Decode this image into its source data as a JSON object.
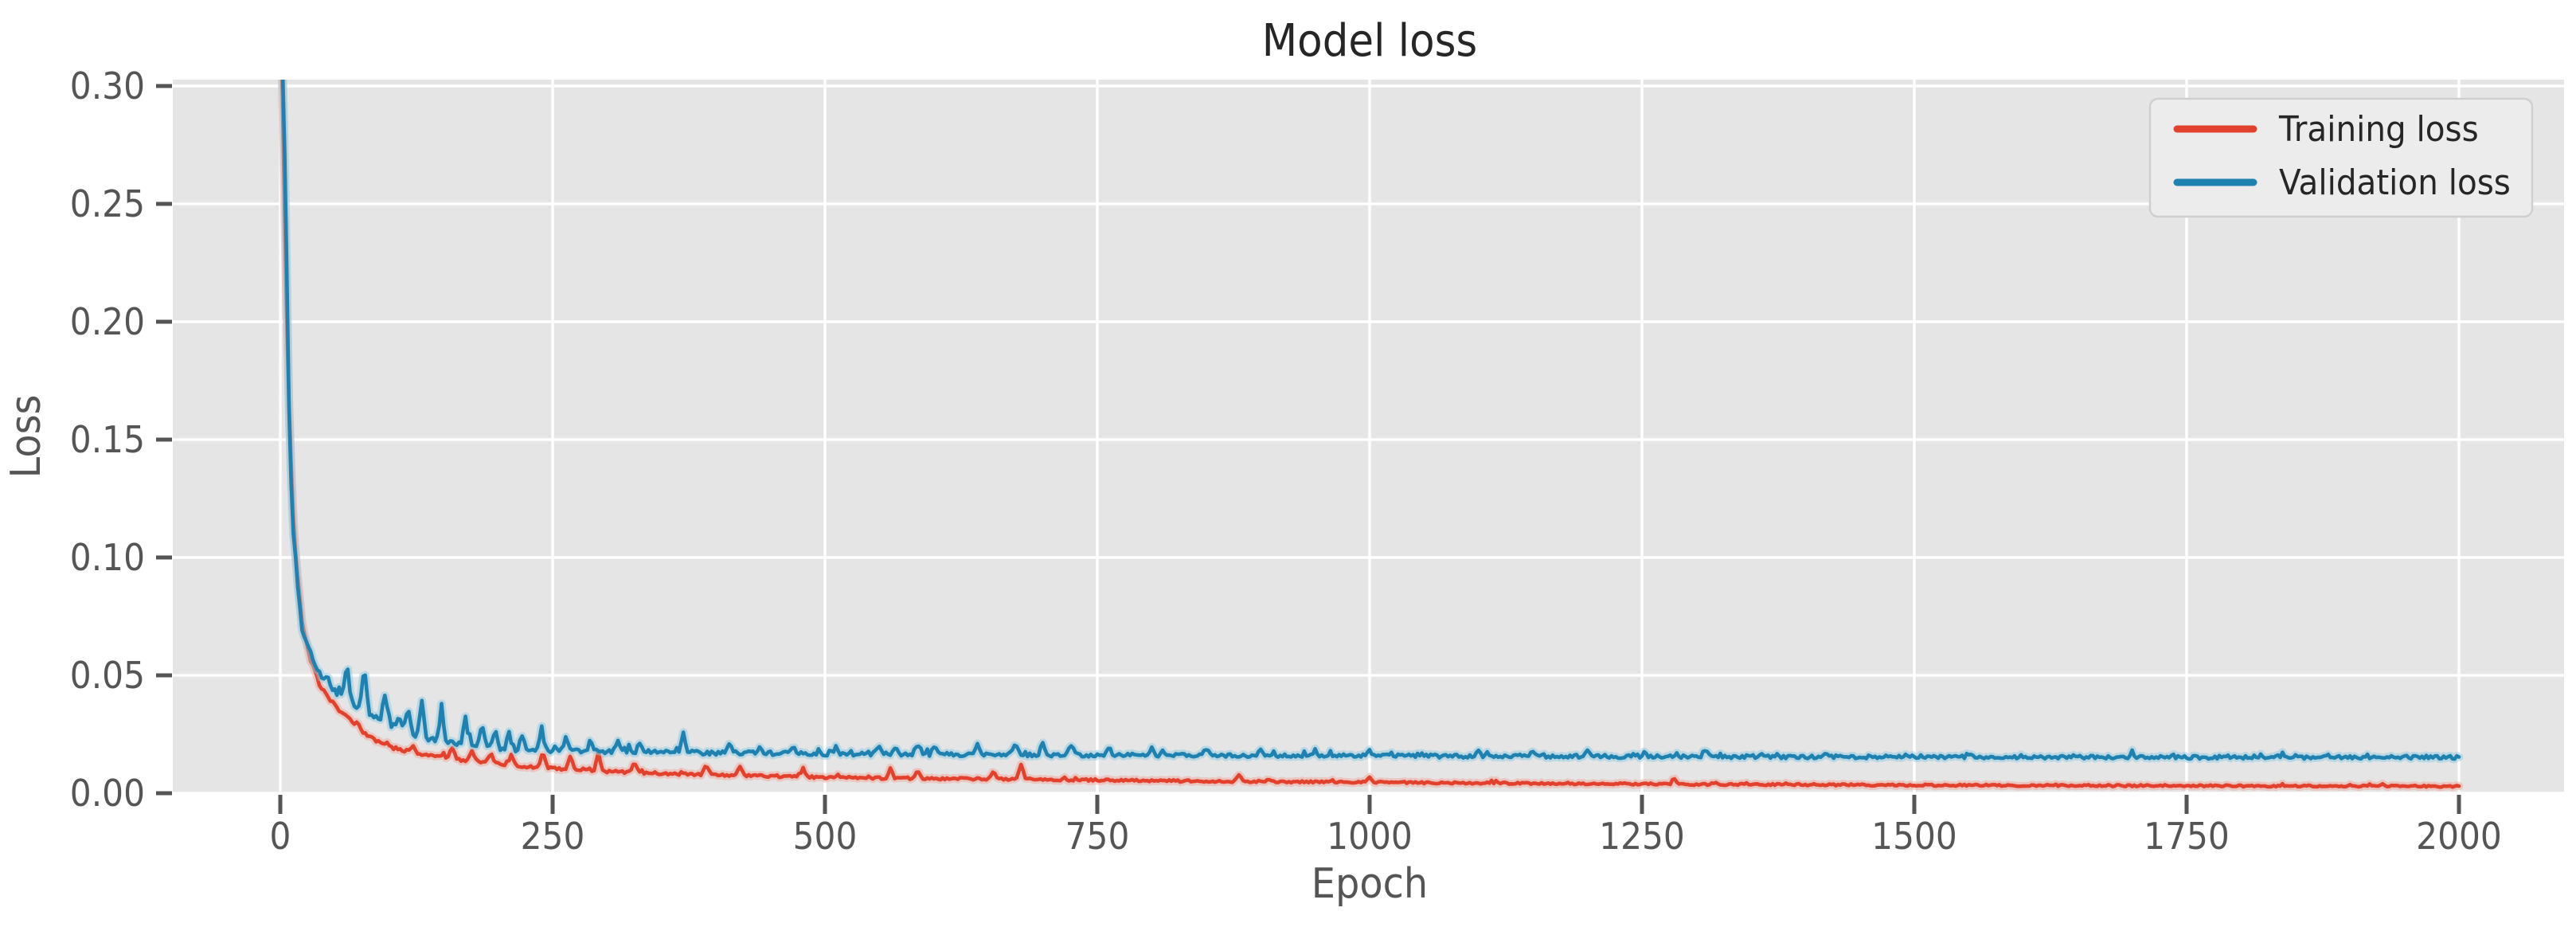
{
  "figure": {
    "background": "#ffffff"
  },
  "chart_data": {
    "type": "line",
    "title": "Model loss",
    "xlabel": "Epoch",
    "ylabel": "Loss",
    "xlim": [
      -100,
      2096
    ],
    "ylim": [
      0,
      0.3027
    ],
    "grid": true,
    "legend_position": "upper right",
    "plot_bg": "#e5e5e5",
    "grid_color": "#ffffff",
    "tick_color": "#555555",
    "label_color": "#555555",
    "title_color": "#262626",
    "legend_bg": "#ececec",
    "legend_border": "#cfcfcf",
    "x_ticks": [
      0,
      250,
      500,
      750,
      1000,
      1250,
      1500,
      1750,
      2000
    ],
    "x_tick_labels": [
      "0",
      "250",
      "500",
      "750",
      "1000",
      "1250",
      "1500",
      "1750",
      "2000"
    ],
    "y_ticks": [
      0.0,
      0.05,
      0.1,
      0.15,
      0.2,
      0.25,
      0.3
    ],
    "y_tick_labels": [
      "0.00",
      "0.05",
      "0.10",
      "0.15",
      "0.20",
      "0.25",
      "0.30"
    ],
    "series": [
      {
        "name": "Training loss",
        "color": "#e2422d",
        "halo": "#f2a79b",
        "seed": 7,
        "micro_spike_prob": 0.05,
        "noise_profile": [
          [
            0,
            0.0012
          ],
          [
            30,
            0.0009
          ],
          [
            120,
            0.0007
          ],
          [
            400,
            0.0005
          ],
          [
            2000,
            0.00035
          ]
        ],
        "keypoints": [
          [
            0,
            0.33
          ],
          [
            2,
            0.295
          ],
          [
            4,
            0.245
          ],
          [
            6,
            0.2
          ],
          [
            8,
            0.165
          ],
          [
            10,
            0.14
          ],
          [
            12,
            0.117
          ],
          [
            15,
            0.096
          ],
          [
            18,
            0.082
          ],
          [
            20,
            0.0725
          ],
          [
            23,
            0.065
          ],
          [
            26,
            0.0595
          ],
          [
            30,
            0.054
          ],
          [
            35,
            0.047
          ],
          [
            40,
            0.0435
          ],
          [
            45,
            0.0402
          ],
          [
            50,
            0.0372
          ],
          [
            55,
            0.0348
          ],
          [
            60,
            0.0327
          ],
          [
            65,
            0.0305
          ],
          [
            70,
            0.0285
          ],
          [
            75,
            0.0266
          ],
          [
            80,
            0.0249
          ],
          [
            85,
            0.0233
          ],
          [
            90,
            0.0218
          ],
          [
            95,
            0.0202
          ],
          [
            100,
            0.0195
          ],
          [
            110,
            0.0185
          ],
          [
            120,
            0.0175
          ],
          [
            140,
            0.016
          ],
          [
            150,
            0.0152
          ],
          [
            160,
            0.0146
          ],
          [
            170,
            0.014
          ],
          [
            180,
            0.0135
          ],
          [
            190,
            0.013
          ],
          [
            200,
            0.0125
          ],
          [
            215,
            0.0117
          ],
          [
            230,
            0.0111
          ],
          [
            250,
            0.0105
          ],
          [
            275,
            0.0098
          ],
          [
            300,
            0.0092
          ],
          [
            325,
            0.0088
          ],
          [
            350,
            0.0084
          ],
          [
            400,
            0.0078
          ],
          [
            450,
            0.0072
          ],
          [
            500,
            0.0067
          ],
          [
            550,
            0.0064
          ],
          [
            600,
            0.0062
          ],
          [
            650,
            0.006
          ],
          [
            700,
            0.0058
          ],
          [
            750,
            0.0056
          ],
          [
            800,
            0.0053
          ],
          [
            900,
            0.0049
          ],
          [
            1000,
            0.0046
          ],
          [
            1100,
            0.0043
          ],
          [
            1200,
            0.004
          ],
          [
            1300,
            0.0038
          ],
          [
            1400,
            0.0036
          ],
          [
            1500,
            0.0034
          ],
          [
            1600,
            0.0033
          ],
          [
            1700,
            0.0032
          ],
          [
            1800,
            0.0031
          ],
          [
            1900,
            0.003
          ],
          [
            2000,
            0.0029
          ]
        ],
        "spikes": [
          [
            122,
            0.0198
          ],
          [
            158,
            0.019
          ],
          [
            176,
            0.018
          ],
          [
            193,
            0.017
          ],
          [
            212,
            0.016
          ],
          [
            241,
            0.0182
          ],
          [
            266,
            0.0162
          ],
          [
            292,
            0.0168
          ],
          [
            325,
            0.013
          ],
          [
            391,
            0.012
          ],
          [
            422,
            0.0115
          ],
          [
            480,
            0.0105
          ],
          [
            560,
            0.0105
          ],
          [
            585,
            0.0098
          ],
          [
            655,
            0.0098
          ],
          [
            680,
            0.012
          ],
          [
            880,
            0.0078
          ],
          [
            1000,
            0.0072
          ],
          [
            1280,
            0.0062
          ]
        ]
      },
      {
        "name": "Validation loss",
        "color": "#1f81b0",
        "halo": "#8ecbe4",
        "seed": 13,
        "micro_spike_prob": 0.1,
        "noise_profile": [
          [
            0,
            0.0022
          ],
          [
            20,
            0.002
          ],
          [
            120,
            0.0012
          ],
          [
            400,
            0.001
          ],
          [
            700,
            0.0008
          ],
          [
            2000,
            0.0007
          ]
        ],
        "keypoints": [
          [
            0,
            0.34
          ],
          [
            2,
            0.31
          ],
          [
            4,
            0.27
          ],
          [
            6,
            0.215
          ],
          [
            8,
            0.162
          ],
          [
            10,
            0.133
          ],
          [
            12,
            0.111
          ],
          [
            15,
            0.0925
          ],
          [
            18,
            0.0795
          ],
          [
            20,
            0.071
          ],
          [
            23,
            0.0655
          ],
          [
            26,
            0.0615
          ],
          [
            30,
            0.0565
          ],
          [
            35,
            0.051
          ],
          [
            40,
            0.0475
          ],
          [
            45,
            0.0448
          ],
          [
            50,
            0.0432
          ],
          [
            55,
            0.0415
          ],
          [
            60,
            0.0398
          ],
          [
            65,
            0.0385
          ],
          [
            70,
            0.0373
          ],
          [
            75,
            0.0362
          ],
          [
            80,
            0.0348
          ],
          [
            85,
            0.0335
          ],
          [
            90,
            0.0318
          ],
          [
            95,
            0.0305
          ],
          [
            100,
            0.029
          ],
          [
            110,
            0.0268
          ],
          [
            120,
            0.0251
          ],
          [
            130,
            0.0238
          ],
          [
            140,
            0.0228
          ],
          [
            150,
            0.022
          ],
          [
            160,
            0.0212
          ],
          [
            170,
            0.0206
          ],
          [
            180,
            0.02
          ],
          [
            190,
            0.0196
          ],
          [
            200,
            0.0192
          ],
          [
            215,
            0.0188
          ],
          [
            230,
            0.0185
          ],
          [
            250,
            0.0182
          ],
          [
            275,
            0.0179
          ],
          [
            300,
            0.0177
          ],
          [
            350,
            0.0174
          ],
          [
            400,
            0.0171
          ],
          [
            450,
            0.0169
          ],
          [
            500,
            0.0168
          ],
          [
            600,
            0.0165
          ],
          [
            700,
            0.0163
          ],
          [
            800,
            0.0161
          ],
          [
            900,
            0.0159
          ],
          [
            1000,
            0.0158
          ],
          [
            1100,
            0.0157
          ],
          [
            1200,
            0.0156
          ],
          [
            1300,
            0.0155
          ],
          [
            1400,
            0.0154
          ],
          [
            1500,
            0.0154
          ],
          [
            1600,
            0.0153
          ],
          [
            1700,
            0.0153
          ],
          [
            1800,
            0.0152
          ],
          [
            1900,
            0.0152
          ],
          [
            2000,
            0.0152
          ]
        ],
        "spikes": [
          [
            42,
            0.05
          ],
          [
            61,
            0.0551
          ],
          [
            77,
            0.0554
          ],
          [
            96,
            0.0416
          ],
          [
            109,
            0.0345
          ],
          [
            117,
            0.036
          ],
          [
            130,
            0.0392
          ],
          [
            148,
            0.037
          ],
          [
            170,
            0.033
          ],
          [
            185,
            0.029
          ],
          [
            197,
            0.028
          ],
          [
            210,
            0.026
          ],
          [
            222,
            0.0242
          ],
          [
            240,
            0.0264
          ],
          [
            262,
            0.023
          ],
          [
            285,
            0.0225
          ],
          [
            310,
            0.0215
          ],
          [
            330,
            0.0215
          ],
          [
            370,
            0.0257
          ],
          [
            412,
            0.021
          ],
          [
            440,
            0.0205
          ],
          [
            470,
            0.02
          ],
          [
            510,
            0.02
          ],
          [
            549,
            0.021
          ],
          [
            565,
            0.0205
          ],
          [
            585,
            0.0212
          ],
          [
            601,
            0.021
          ],
          [
            640,
            0.0208
          ],
          [
            675,
            0.0208
          ],
          [
            700,
            0.021
          ],
          [
            726,
            0.0207
          ],
          [
            760,
            0.0195
          ],
          [
            800,
            0.0195
          ],
          [
            850,
            0.019
          ],
          [
            900,
            0.0188
          ],
          [
            950,
            0.0185
          ],
          [
            1000,
            0.0183
          ],
          [
            1100,
            0.018
          ],
          [
            1150,
            0.0178
          ],
          [
            1200,
            0.0178
          ],
          [
            1308,
            0.0185
          ],
          [
            1420,
            0.0172
          ],
          [
            1550,
            0.017
          ],
          [
            1700,
            0.0168
          ],
          [
            1850,
            0.0166
          ]
        ]
      }
    ]
  }
}
